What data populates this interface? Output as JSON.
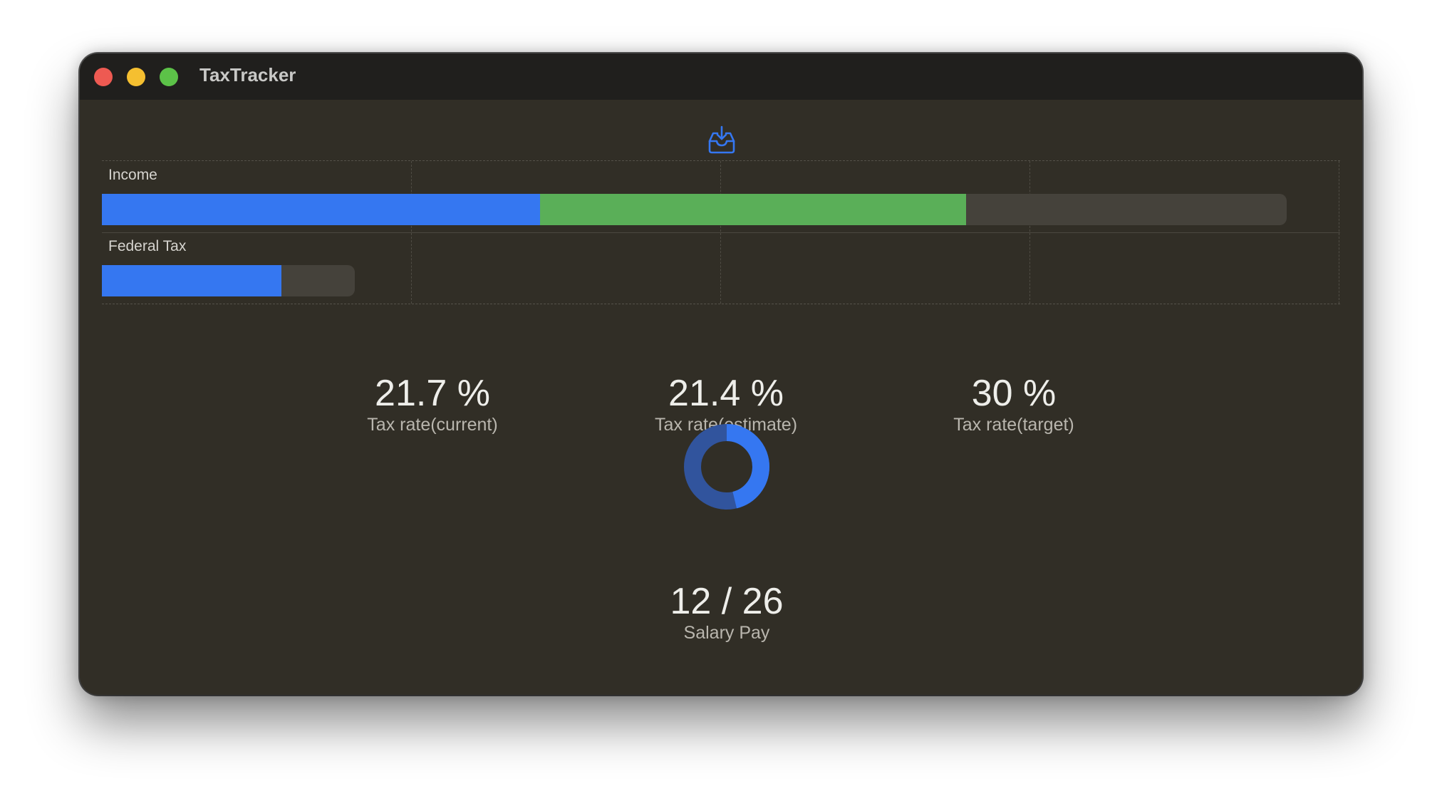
{
  "window": {
    "title": "TaxTracker"
  },
  "toolbar": {
    "import_icon": "tray-download-icon"
  },
  "bars": [
    {
      "label": "Income",
      "total_fraction": 0.957,
      "segments": [
        {
          "fraction": 0.354,
          "color": "#3577f1"
        },
        {
          "fraction": 0.344,
          "color": "#5aaf58"
        }
      ]
    },
    {
      "label": "Federal Tax",
      "total_fraction": 0.204,
      "segments": [
        {
          "fraction": 0.145,
          "color": "#3577f1"
        }
      ]
    }
  ],
  "stats": [
    {
      "value": "21.7 %",
      "label": "Tax rate(current)"
    },
    {
      "value": "21.4 %",
      "label": "Tax rate(estimate)"
    },
    {
      "value": "30 %",
      "label": "Tax rate(target)"
    }
  ],
  "salary": {
    "value": "12 / 26",
    "label": "Salary Pay",
    "progress": 0.4615,
    "color": "#3577f1",
    "track_color": "#31549d"
  }
}
